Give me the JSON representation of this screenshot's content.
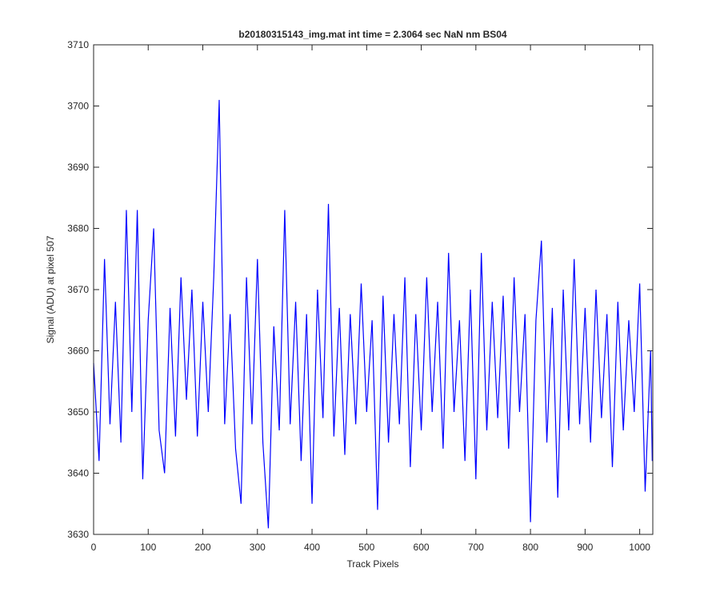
{
  "chart_data": {
    "type": "line",
    "title": "b20180315143_img.mat int time = 2.3064 sec  NaN nm BS04",
    "x_label": "Track Pixels",
    "y_label": "Signal (ADU) at pixel 507",
    "xlim": [
      0,
      1024
    ],
    "ylim": [
      3630,
      3710
    ],
    "xticks": [
      0,
      100,
      200,
      300,
      400,
      500,
      600,
      700,
      800,
      900,
      1000
    ],
    "yticks": [
      3630,
      3640,
      3650,
      3660,
      3670,
      3680,
      3690,
      3700,
      3710
    ],
    "grid": false,
    "x": [
      0,
      10,
      20,
      30,
      40,
      50,
      60,
      70,
      80,
      90,
      100,
      110,
      120,
      130,
      140,
      150,
      160,
      170,
      180,
      190,
      200,
      210,
      220,
      230,
      240,
      250,
      260,
      270,
      280,
      290,
      300,
      310,
      320,
      330,
      340,
      350,
      360,
      370,
      380,
      390,
      400,
      410,
      420,
      430,
      440,
      450,
      460,
      470,
      480,
      490,
      500,
      510,
      520,
      530,
      540,
      550,
      560,
      570,
      580,
      590,
      600,
      610,
      620,
      630,
      640,
      650,
      660,
      670,
      680,
      690,
      700,
      710,
      720,
      730,
      740,
      750,
      760,
      770,
      780,
      790,
      800,
      810,
      820,
      830,
      840,
      850,
      860,
      870,
      880,
      890,
      900,
      910,
      920,
      930,
      940,
      950,
      960,
      970,
      980,
      990,
      1000,
      1010,
      1020,
      1023
    ],
    "series": [
      {
        "name": "signal",
        "color": "#0000ff",
        "values": [
          3658,
          3642,
          3675,
          3648,
          3668,
          3645,
          3683,
          3650,
          3683,
          3639,
          3665,
          3680,
          3647,
          3640,
          3667,
          3646,
          3672,
          3652,
          3670,
          3646,
          3668,
          3650,
          3672,
          3701,
          3648,
          3666,
          3644,
          3635,
          3672,
          3648,
          3675,
          3645,
          3631,
          3664,
          3647,
          3683,
          3648,
          3668,
          3642,
          3666,
          3635,
          3670,
          3649,
          3684,
          3646,
          3667,
          3643,
          3666,
          3648,
          3671,
          3650,
          3665,
          3634,
          3669,
          3645,
          3666,
          3648,
          3672,
          3641,
          3666,
          3647,
          3672,
          3650,
          3668,
          3644,
          3676,
          3650,
          3665,
          3642,
          3670,
          3639,
          3676,
          3647,
          3668,
          3649,
          3669,
          3644,
          3672,
          3650,
          3666,
          3632,
          3665,
          3678,
          3645,
          3667,
          3636,
          3670,
          3647,
          3675,
          3648,
          3667,
          3645,
          3670,
          3649,
          3666,
          3641,
          3668,
          3647,
          3665,
          3650,
          3671,
          3637,
          3660,
          3642
        ]
      }
    ]
  }
}
